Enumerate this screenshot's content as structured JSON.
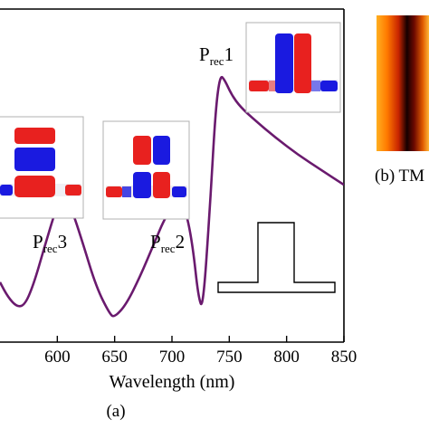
{
  "chart_data": {
    "type": "line",
    "title": "",
    "xlabel": "Wavelength  (nm)",
    "ylabel": "",
    "xlim": [
      550,
      850
    ],
    "x_ticks": [
      600,
      650,
      700,
      750,
      800,
      850
    ],
    "x_tick_labels": [
      "600",
      "650",
      "700",
      "750",
      "800",
      "850"
    ],
    "series": [
      {
        "color": "#6a1a6e",
        "x": [
          550,
          557,
          565,
          572,
          580,
          590,
          600,
          606,
          612,
          622,
          634,
          646,
          650,
          660,
          672,
          684,
          695,
          705,
          712,
          718,
          723,
          727,
          733,
          738,
          742,
          746,
          752,
          760,
          772,
          790,
          810,
          830,
          850
        ],
        "y": [
          0.16,
          0.1,
          0.06,
          0.07,
          0.16,
          0.32,
          0.47,
          0.5,
          0.46,
          0.32,
          0.14,
          0.03,
          0.02,
          0.07,
          0.18,
          0.31,
          0.43,
          0.48,
          0.45,
          0.31,
          0.1,
          0.05,
          0.45,
          0.85,
          0.99,
          0.97,
          0.91,
          0.86,
          0.81,
          0.74,
          0.67,
          0.61,
          0.55
        ]
      }
    ],
    "annotations": [
      {
        "label": "P",
        "sub": "rec",
        "num": "1"
      },
      {
        "label": "P",
        "sub": "rec",
        "num": "2"
      },
      {
        "label": "P",
        "sub": "rec",
        "num": "3"
      }
    ],
    "panel_labels": {
      "a": "(a)",
      "b": "(b) TM"
    }
  },
  "colors": {
    "curve": "#6a1a6e",
    "field_positive": "#e8211f",
    "field_negative": "#1a1ae0",
    "frame": "#000000"
  }
}
